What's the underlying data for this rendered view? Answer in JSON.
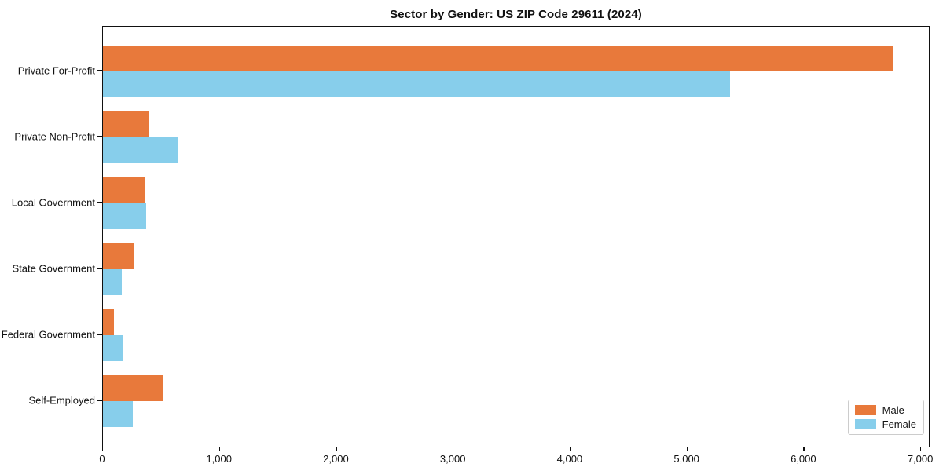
{
  "title": "Sector by Gender: US ZIP Code 29611 (2024)",
  "colors": {
    "male": "#e8793b",
    "female": "#87ceeb",
    "spine": "#111111",
    "legend_border": "#cccccc",
    "background": "#ffffff"
  },
  "legend": {
    "position": "lower right",
    "items": [
      {
        "label": "Male",
        "color": "#e8793b"
      },
      {
        "label": "Female",
        "color": "#87ceeb"
      }
    ]
  },
  "chart_data": {
    "type": "bar",
    "orientation": "horizontal",
    "title": "Sector by Gender: US ZIP Code 29611 (2024)",
    "categories": [
      "Private For-Profit",
      "Private Non-Profit",
      "Local Government",
      "State Government",
      "Federal Government",
      "Self-Employed"
    ],
    "series": [
      {
        "name": "Male",
        "color": "#e8793b",
        "values": [
          6760,
          390,
          362,
          270,
          95,
          520
        ]
      },
      {
        "name": "Female",
        "color": "#87ceeb",
        "values": [
          5365,
          640,
          368,
          160,
          165,
          255
        ]
      }
    ],
    "xlabel": "",
    "ylabel": "",
    "xlim": [
      0,
      7080
    ],
    "x_ticks": [
      0,
      1000,
      2000,
      3000,
      4000,
      5000,
      6000,
      7000
    ],
    "x_tick_labels": [
      "0",
      "1,000",
      "2,000",
      "3,000",
      "4,000",
      "5,000",
      "6,000",
      "7,000"
    ],
    "grid": false,
    "legend_position": "lower right"
  }
}
